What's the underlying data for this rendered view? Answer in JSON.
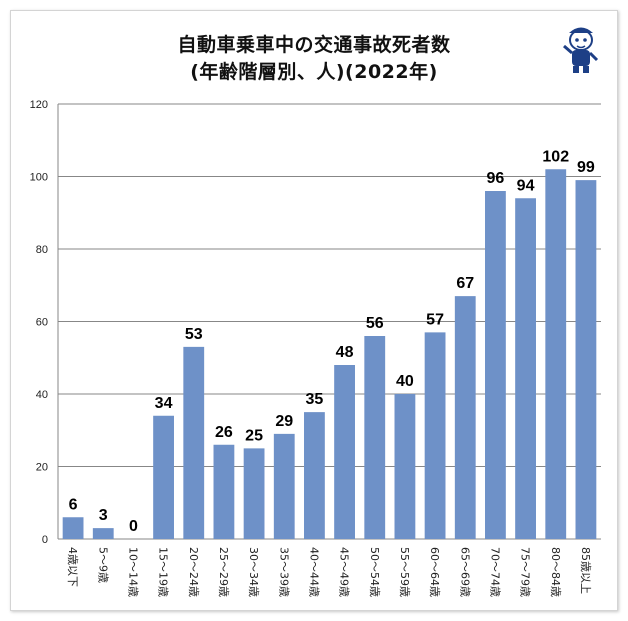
{
  "chart_data": {
    "type": "bar",
    "title_line1": "自動車乗車中の交通事故死者数",
    "title_line2": "(年齢階層別、人)(2022年)",
    "categories": [
      "4歳以下",
      "5～9歳",
      "10～14歳",
      "15～19歳",
      "20～24歳",
      "25～29歳",
      "30～34歳",
      "35～39歳",
      "40～44歳",
      "45～49歳",
      "50～54歳",
      "55～59歳",
      "60～64歳",
      "65～69歳",
      "70～74歳",
      "75～79歳",
      "80～84歳",
      "85歳以上"
    ],
    "values": [
      6,
      3,
      0,
      34,
      53,
      26,
      25,
      29,
      35,
      48,
      56,
      40,
      57,
      67,
      96,
      94,
      102,
      99
    ],
    "yticks": [
      0,
      20,
      40,
      60,
      80,
      100,
      120
    ],
    "ylim": [
      0,
      120
    ],
    "grid": true,
    "bar_color": "#6e91c8"
  },
  "mascot": {
    "icon": "mascot-icon"
  }
}
